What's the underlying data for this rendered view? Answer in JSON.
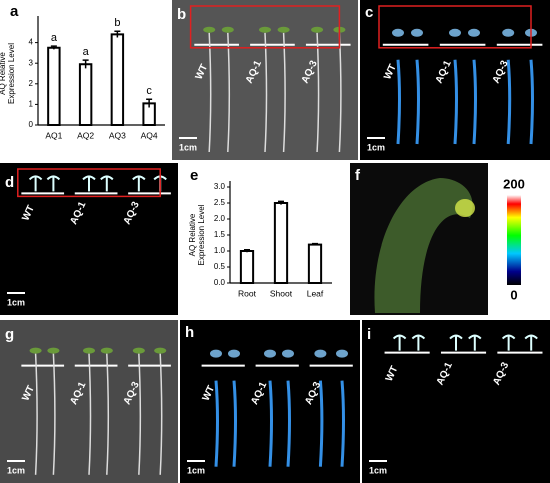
{
  "chart_data": [
    {
      "type": "bar",
      "label": "a",
      "ylabel": [
        "AQ Relative",
        "Expression  Level"
      ],
      "categories": [
        "AQ1",
        "AQ2",
        "AQ3",
        "AQ4"
      ],
      "values": [
        3.75,
        2.95,
        4.4,
        1.05
      ],
      "errors": [
        0.08,
        0.2,
        0.15,
        0.2
      ],
      "annotations": [
        "a",
        "a",
        "b",
        "c"
      ],
      "ylim": [
        0,
        5
      ],
      "yticks": [
        0,
        1,
        2,
        3,
        4
      ],
      "color": "#ffffff"
    },
    {
      "type": "bar",
      "label": "e",
      "ylabel": [
        "AQ Relative",
        "Expression  Level"
      ],
      "categories": [
        "Root",
        "Shoot",
        "Leaf"
      ],
      "values": [
        1.0,
        2.5,
        1.2
      ],
      "errors": [
        0.04,
        0.05,
        0.03
      ],
      "ylim": [
        0,
        3
      ],
      "yticks": [
        {
          "value": 0,
          "label": "0.0"
        },
        0.5,
        {
          "value": 1,
          "label": "1.0"
        },
        1.5,
        {
          "value": 2,
          "label": "2.0"
        },
        2.5,
        {
          "value": 3,
          "label": "3.0"
        }
      ],
      "color": "#ffffff"
    }
  ],
  "panels": [
    {
      "letter": "b",
      "labels": [
        "WT",
        "AQ-1",
        "AQ-3"
      ],
      "scale": "1cm"
    },
    {
      "letter": "c",
      "labels": [
        "WT",
        "AQ-1",
        "AQ-3"
      ],
      "scale": "1cm"
    },
    {
      "letter": "d",
      "labels": [
        "WT",
        "AQ-1",
        "AQ-3"
      ],
      "scale": "1cm"
    },
    {
      "letter": "f"
    },
    {
      "letter": "g",
      "labels": [
        "WT",
        "AQ-1",
        "AQ-3"
      ],
      "scale": "1cm"
    },
    {
      "letter": "h",
      "labels": [
        "WT",
        "AQ-1",
        "AQ-3"
      ],
      "scale": "1cm"
    },
    {
      "letter": "i",
      "labels": [
        "WT",
        "AQ-1",
        "AQ-3"
      ],
      "scale": "1cm"
    }
  ],
  "colorbar": {
    "max": 200,
    "min": 0
  }
}
